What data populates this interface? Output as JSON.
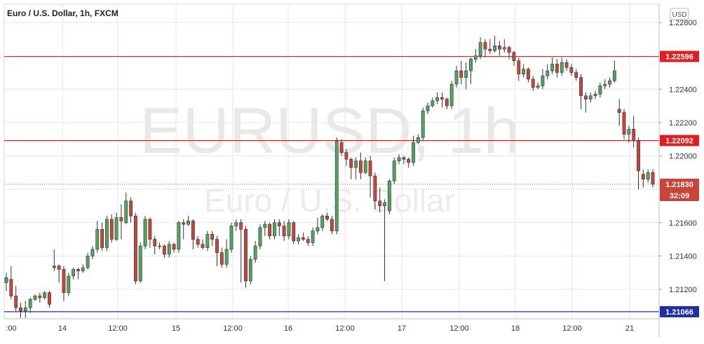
{
  "header": {
    "symbol_title": "Euro / U.S. Dollar, 1h, FXCM"
  },
  "watermark": {
    "symbol": "EURUSD, 1h",
    "description": "Euro / U.S. Dollar"
  },
  "currency_badge": "USD",
  "colors": {
    "up": "#53a262",
    "down": "#c9453a",
    "resistance": "#e02020",
    "support": "#1f2ea0",
    "grid": "#e6e6e6"
  },
  "chart_data": {
    "type": "candlestick",
    "title": "Euro / U.S. Dollar, 1h, FXCM",
    "xlabel": "",
    "ylabel": "",
    "ylim": [
      1.2103,
      1.2283
    ],
    "grid": true,
    "y_ticks": [
      "1.21200",
      "1.21400",
      "1.21600",
      "1.21800",
      "1.22000",
      "1.22200",
      "1.22400",
      "1.22800"
    ],
    "x_ticks": [
      ":00",
      "14",
      "12:00",
      "15",
      "12:00",
      "16",
      "12:00",
      "17",
      "12:00",
      "18",
      "12:00",
      "21"
    ],
    "horizontal_lines": [
      {
        "label": "1.22596",
        "value": 1.22596,
        "kind": "resistance"
      },
      {
        "label": "1.22092",
        "value": 1.22092,
        "kind": "resistance"
      },
      {
        "label": "1.21066",
        "value": 1.21066,
        "kind": "support"
      }
    ],
    "last_price": {
      "label": "1.21830",
      "value": 1.2183,
      "countdown": "32:09"
    },
    "candles": [
      [
        1.2124,
        1.2127,
        1.2119,
        1.213
      ],
      [
        1.2126,
        1.2116,
        1.2114,
        1.2134
      ],
      [
        1.2116,
        1.2109,
        1.2107,
        1.2122
      ],
      [
        1.2109,
        1.2107,
        1.2103,
        1.2112
      ],
      [
        1.2107,
        1.2109,
        1.2103,
        1.2113
      ],
      [
        1.2109,
        1.2114,
        1.2106,
        1.2115
      ],
      [
        1.2114,
        1.2116,
        1.2113,
        1.2117
      ],
      [
        1.2116,
        1.2115,
        1.2112,
        1.2118
      ],
      [
        1.2115,
        1.2118,
        1.2114,
        1.2119
      ],
      [
        1.2118,
        1.2111,
        1.2109,
        1.2119
      ],
      [
        1.2134,
        1.2133,
        1.2131,
        1.2144
      ],
      [
        1.2134,
        1.2132,
        1.2124,
        1.2135
      ],
      [
        1.2132,
        1.2118,
        1.2113,
        1.2134
      ],
      [
        1.2118,
        1.2128,
        1.2116,
        1.213
      ],
      [
        1.2128,
        1.2132,
        1.2126,
        1.2133
      ],
      [
        1.2132,
        1.2131,
        1.2126,
        1.2133
      ],
      [
        1.2131,
        1.2133,
        1.213,
        1.2135
      ],
      [
        1.2133,
        1.214,
        1.2132,
        1.2142
      ],
      [
        1.214,
        1.2144,
        1.2138,
        1.2146
      ],
      [
        1.2144,
        1.2156,
        1.2142,
        1.2161
      ],
      [
        1.2156,
        1.2145,
        1.2143,
        1.216
      ],
      [
        1.2145,
        1.2162,
        1.2143,
        1.2164
      ],
      [
        1.2162,
        1.215,
        1.2148,
        1.2165
      ],
      [
        1.215,
        1.2163,
        1.2149,
        1.2166
      ],
      [
        1.2163,
        1.2161,
        1.215,
        1.2171
      ],
      [
        1.216,
        1.2173,
        1.2159,
        1.2178
      ],
      [
        1.2173,
        1.2164,
        1.216,
        1.2175
      ],
      [
        1.2164,
        1.2125,
        1.2123,
        1.2166
      ],
      [
        1.2125,
        1.2146,
        1.2124,
        1.2148
      ],
      [
        1.2146,
        1.2162,
        1.2144,
        1.2164
      ],
      [
        1.2162,
        1.215,
        1.2145,
        1.2163
      ],
      [
        1.215,
        1.2146,
        1.2141,
        1.2152
      ],
      [
        1.2146,
        1.2146,
        1.2144,
        1.2148
      ],
      [
        1.2146,
        1.2141,
        1.2139,
        1.2147
      ],
      [
        1.2141,
        1.2147,
        1.2139,
        1.2149
      ],
      [
        1.2147,
        1.2144,
        1.2142,
        1.2148
      ],
      [
        1.2144,
        1.216,
        1.2142,
        1.2161
      ],
      [
        1.216,
        1.2159,
        1.215,
        1.2162
      ],
      [
        1.2159,
        1.2161,
        1.2158,
        1.2164
      ],
      [
        1.2161,
        1.215,
        1.2144,
        1.2162
      ],
      [
        1.215,
        1.2147,
        1.2145,
        1.2152
      ],
      [
        1.2147,
        1.2145,
        1.2144,
        1.215
      ],
      [
        1.2145,
        1.2153,
        1.2143,
        1.2155
      ],
      [
        1.2153,
        1.215,
        1.2146,
        1.2155
      ],
      [
        1.215,
        1.2142,
        1.2134,
        1.2152
      ],
      [
        1.2142,
        1.2135,
        1.2133,
        1.2145
      ],
      [
        1.2135,
        1.2144,
        1.2133,
        1.215
      ],
      [
        1.2144,
        1.2158,
        1.2142,
        1.216
      ],
      [
        1.2158,
        1.216,
        1.2155,
        1.2162
      ],
      [
        1.216,
        1.2156,
        1.2124,
        1.2162
      ],
      [
        1.2156,
        1.2125,
        1.2121,
        1.2158
      ],
      [
        1.2125,
        1.2138,
        1.2123,
        1.214
      ],
      [
        1.2138,
        1.2146,
        1.2136,
        1.2149
      ],
      [
        1.2146,
        1.2157,
        1.2144,
        1.2159
      ],
      [
        1.2157,
        1.2159,
        1.2152,
        1.2161
      ],
      [
        1.2159,
        1.2152,
        1.215,
        1.216
      ],
      [
        1.2152,
        1.216,
        1.215,
        1.2162
      ],
      [
        1.216,
        1.2158,
        1.2152,
        1.2162
      ],
      [
        1.2158,
        1.2152,
        1.2149,
        1.2161
      ],
      [
        1.2152,
        1.216,
        1.215,
        1.2162
      ],
      [
        1.216,
        1.2149,
        1.2147,
        1.2161
      ],
      [
        1.2149,
        1.2151,
        1.2147,
        1.2153
      ],
      [
        1.2151,
        1.215,
        1.2149,
        1.2154
      ],
      [
        1.215,
        1.2148,
        1.2146,
        1.2152
      ],
      [
        1.2148,
        1.2155,
        1.2146,
        1.2157
      ],
      [
        1.2155,
        1.2157,
        1.2153,
        1.2163
      ],
      [
        1.2157,
        1.2164,
        1.2155,
        1.2165
      ],
      [
        1.2164,
        1.2162,
        1.2161,
        1.2166
      ],
      [
        1.2162,
        1.2155,
        1.2153,
        1.2164
      ],
      [
        1.2155,
        1.2209,
        1.2153,
        1.2211
      ],
      [
        1.2208,
        1.2202,
        1.22,
        1.221
      ],
      [
        1.2202,
        1.2198,
        1.2194,
        1.2204
      ],
      [
        1.2198,
        1.2193,
        1.2186,
        1.2199
      ],
      [
        1.2193,
        1.2197,
        1.2186,
        1.2199
      ],
      [
        1.2197,
        1.219,
        1.2186,
        1.2202
      ],
      [
        1.219,
        1.2197,
        1.2189,
        1.2199
      ],
      [
        1.2197,
        1.2188,
        1.2175,
        1.22
      ],
      [
        1.2188,
        1.2173,
        1.2168,
        1.219
      ],
      [
        1.2173,
        1.217,
        1.2166,
        1.2181
      ],
      [
        1.217,
        1.2172,
        1.2125,
        1.2174
      ],
      [
        1.2167,
        1.2185,
        1.2165,
        1.2186
      ],
      [
        1.2185,
        1.2197,
        1.2183,
        1.2199
      ],
      [
        1.2197,
        1.2199,
        1.2195,
        1.2201
      ],
      [
        1.2199,
        1.2198,
        1.2195,
        1.22
      ],
      [
        1.2198,
        1.2196,
        1.2193,
        1.2199
      ],
      [
        1.2196,
        1.2208,
        1.2194,
        1.2212
      ],
      [
        1.2208,
        1.2211,
        1.2207,
        1.2213
      ],
      [
        1.2211,
        1.2227,
        1.2209,
        1.2229
      ],
      [
        1.2227,
        1.223,
        1.2225,
        1.2232
      ],
      [
        1.223,
        1.2233,
        1.2229,
        1.2235
      ],
      [
        1.2233,
        1.2235,
        1.2231,
        1.2238
      ],
      [
        1.2235,
        1.2234,
        1.2229,
        1.2238
      ],
      [
        1.2234,
        1.223,
        1.2228,
        1.2235
      ],
      [
        1.223,
        1.2243,
        1.2228,
        1.2245
      ],
      [
        1.2243,
        1.2251,
        1.2241,
        1.2254
      ],
      [
        1.2251,
        1.2247,
        1.2243,
        1.2257
      ],
      [
        1.2247,
        1.2251,
        1.224,
        1.2256
      ],
      [
        1.2251,
        1.2258,
        1.2243,
        1.2259
      ],
      [
        1.2258,
        1.226,
        1.2256,
        1.2264
      ],
      [
        1.226,
        1.2268,
        1.2258,
        1.2271
      ],
      [
        1.2268,
        1.2264,
        1.2259,
        1.227
      ],
      [
        1.2264,
        1.2263,
        1.2261,
        1.227
      ],
      [
        1.2263,
        1.2266,
        1.2262,
        1.2272
      ],
      [
        1.2266,
        1.2264,
        1.226,
        1.2269
      ],
      [
        1.2264,
        1.2265,
        1.2262,
        1.227
      ],
      [
        1.2265,
        1.2262,
        1.2258,
        1.2266
      ],
      [
        1.2262,
        1.2257,
        1.2254,
        1.2263
      ],
      [
        1.2257,
        1.2249,
        1.2245,
        1.2259
      ],
      [
        1.2249,
        1.2252,
        1.2247,
        1.2255
      ],
      [
        1.2252,
        1.2246,
        1.2244,
        1.2253
      ],
      [
        1.2246,
        1.2241,
        1.2239,
        1.2248
      ],
      [
        1.2241,
        1.2242,
        1.224,
        1.2244
      ],
      [
        1.2242,
        1.2248,
        1.224,
        1.2252
      ],
      [
        1.2248,
        1.2251,
        1.2246,
        1.2255
      ],
      [
        1.2251,
        1.2255,
        1.2249,
        1.2259
      ],
      [
        1.2255,
        1.225,
        1.2247,
        1.2258
      ],
      [
        1.225,
        1.2256,
        1.2248,
        1.2259
      ],
      [
        1.2256,
        1.2253,
        1.2251,
        1.2258
      ],
      [
        1.2253,
        1.225,
        1.2248,
        1.2255
      ],
      [
        1.225,
        1.2247,
        1.2245,
        1.2252
      ],
      [
        1.2247,
        1.2236,
        1.2228,
        1.2249
      ],
      [
        1.2236,
        1.2234,
        1.2226,
        1.2238
      ],
      [
        1.2234,
        1.2236,
        1.2232,
        1.2238
      ],
      [
        1.2236,
        1.2237,
        1.2234,
        1.2239
      ],
      [
        1.2237,
        1.2242,
        1.2235,
        1.2244
      ],
      [
        1.2242,
        1.2243,
        1.224,
        1.2246
      ],
      [
        1.2243,
        1.2245,
        1.2241,
        1.2247
      ],
      [
        1.2245,
        1.2251,
        1.2244,
        1.2257
      ],
      [
        1.2228,
        1.2226,
        1.2218,
        1.2234
      ],
      [
        1.2226,
        1.2213,
        1.221,
        1.2228
      ],
      [
        1.2213,
        1.2216,
        1.2208,
        1.2218
      ],
      [
        1.2216,
        1.2209,
        1.2205,
        1.2224
      ],
      [
        1.2209,
        1.2191,
        1.218,
        1.2211
      ],
      [
        1.2189,
        1.2186,
        1.2181,
        1.2192
      ],
      [
        1.2186,
        1.219,
        1.2184,
        1.2192
      ],
      [
        1.219,
        1.2183,
        1.2181,
        1.2192
      ]
    ]
  }
}
